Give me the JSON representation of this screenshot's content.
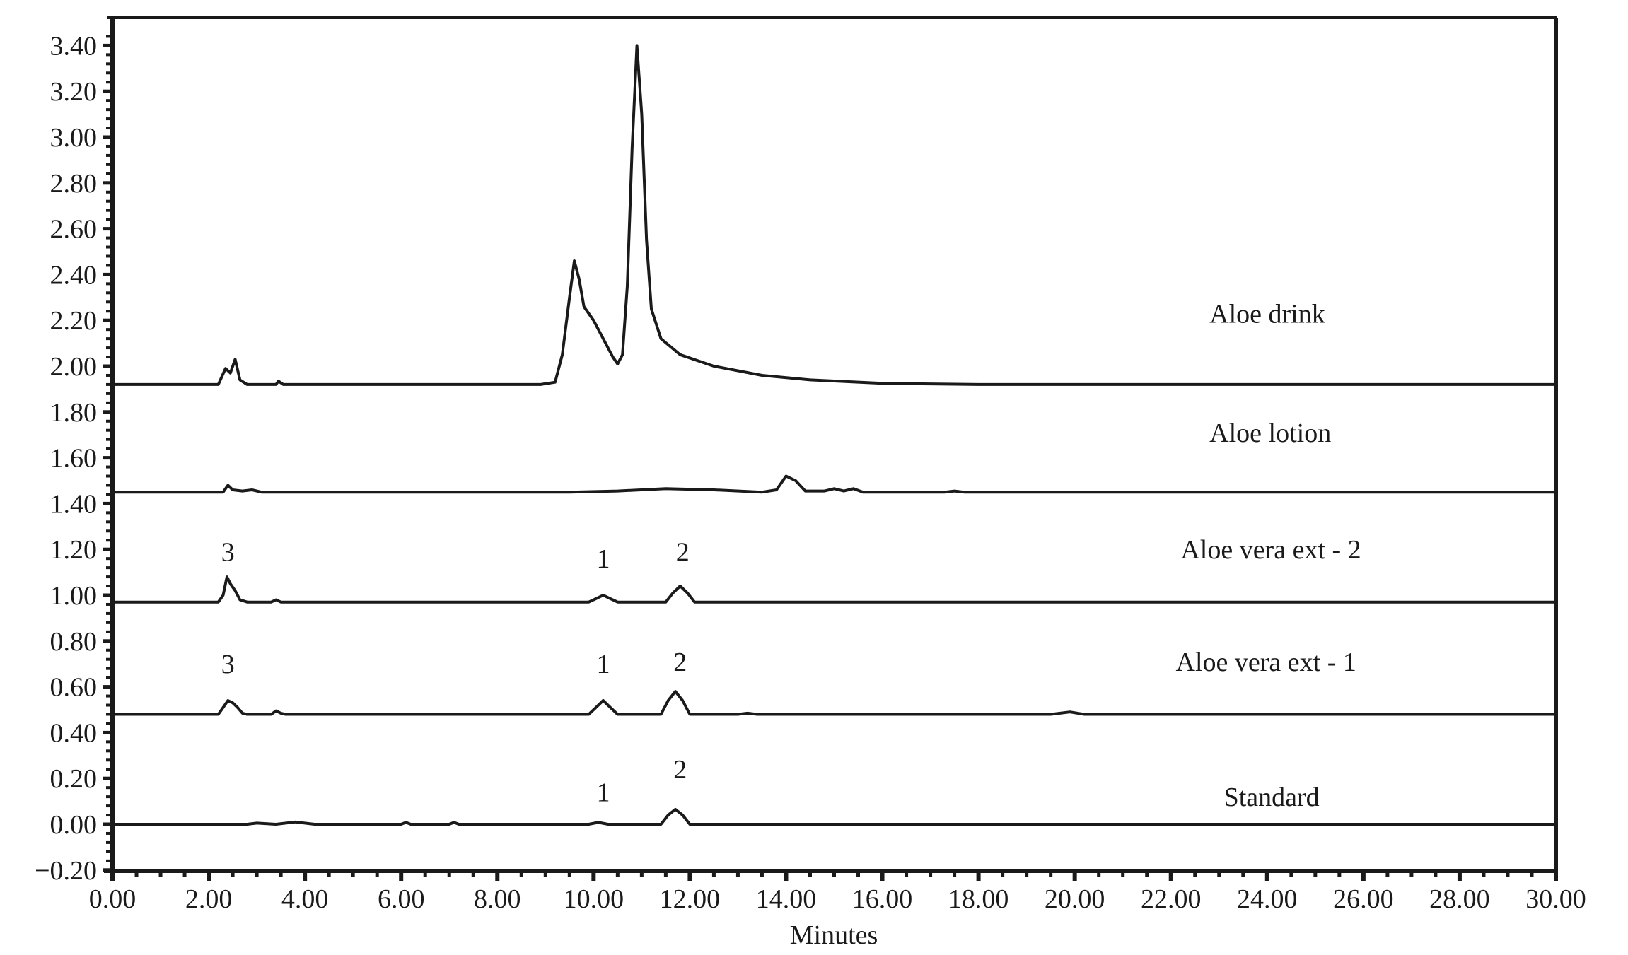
{
  "chart_data": {
    "type": "line",
    "title": "",
    "xlabel": "Minutes",
    "ylabel": "",
    "xlim": [
      0,
      30
    ],
    "ylim": [
      -0.2,
      3.45
    ],
    "grid": false,
    "legend_position": "inline-right",
    "x_ticks": [
      "0.00",
      "2.00",
      "4.00",
      "6.00",
      "8.00",
      "10.00",
      "12.00",
      "14.00",
      "16.00",
      "18.00",
      "20.00",
      "22.00",
      "24.00",
      "26.00",
      "28.00",
      "30.00"
    ],
    "y_ticks": [
      "-0.20",
      "0.00",
      "0.20",
      "0.40",
      "0.60",
      "0.80",
      "1.00",
      "1.20",
      "1.40",
      "1.60",
      "1.80",
      "2.00",
      "2.20",
      "2.40",
      "2.60",
      "2.80",
      "3.00",
      "3.20",
      "3.40"
    ],
    "series": [
      {
        "name": "Aloe drink",
        "baseline": 1.92,
        "label_pos": [
          22.8,
          2.19
        ],
        "points": [
          [
            0,
            1.92
          ],
          [
            2.2,
            1.92
          ],
          [
            2.35,
            1.99
          ],
          [
            2.45,
            1.97
          ],
          [
            2.55,
            2.03
          ],
          [
            2.65,
            1.94
          ],
          [
            2.8,
            1.92
          ],
          [
            3.4,
            1.92
          ],
          [
            3.45,
            1.935
          ],
          [
            3.55,
            1.92
          ],
          [
            8.9,
            1.92
          ],
          [
            9.2,
            1.93
          ],
          [
            9.35,
            2.05
          ],
          [
            9.5,
            2.3
          ],
          [
            9.6,
            2.46
          ],
          [
            9.7,
            2.38
          ],
          [
            9.8,
            2.26
          ],
          [
            10.0,
            2.2
          ],
          [
            10.2,
            2.12
          ],
          [
            10.4,
            2.04
          ],
          [
            10.5,
            2.01
          ],
          [
            10.6,
            2.05
          ],
          [
            10.7,
            2.35
          ],
          [
            10.8,
            2.95
          ],
          [
            10.9,
            3.4
          ],
          [
            11.0,
            3.1
          ],
          [
            11.1,
            2.55
          ],
          [
            11.2,
            2.25
          ],
          [
            11.4,
            2.12
          ],
          [
            11.8,
            2.05
          ],
          [
            12.5,
            2.0
          ],
          [
            13.5,
            1.96
          ],
          [
            14.5,
            1.94
          ],
          [
            16,
            1.925
          ],
          [
            18,
            1.92
          ],
          [
            30,
            1.92
          ]
        ],
        "peaks": []
      },
      {
        "name": "Aloe lotion",
        "baseline": 1.45,
        "label_pos": [
          22.8,
          1.67
        ],
        "points": [
          [
            0,
            1.45
          ],
          [
            2.3,
            1.45
          ],
          [
            2.4,
            1.48
          ],
          [
            2.5,
            1.46
          ],
          [
            2.7,
            1.455
          ],
          [
            2.9,
            1.46
          ],
          [
            3.1,
            1.45
          ],
          [
            9.5,
            1.45
          ],
          [
            10.5,
            1.455
          ],
          [
            11.5,
            1.465
          ],
          [
            12.5,
            1.46
          ],
          [
            13.5,
            1.45
          ],
          [
            13.8,
            1.46
          ],
          [
            14.0,
            1.52
          ],
          [
            14.2,
            1.5
          ],
          [
            14.4,
            1.455
          ],
          [
            14.8,
            1.455
          ],
          [
            15.0,
            1.465
          ],
          [
            15.2,
            1.455
          ],
          [
            15.4,
            1.465
          ],
          [
            15.6,
            1.45
          ],
          [
            17.3,
            1.45
          ],
          [
            17.5,
            1.455
          ],
          [
            17.7,
            1.45
          ],
          [
            30,
            1.45
          ]
        ],
        "peaks": []
      },
      {
        "name": "Aloe vera ext - 2",
        "baseline": 0.97,
        "label_pos": [
          22.2,
          1.16
        ],
        "points": [
          [
            0,
            0.97
          ],
          [
            2.2,
            0.97
          ],
          [
            2.3,
            1.0
          ],
          [
            2.38,
            1.08
          ],
          [
            2.45,
            1.05
          ],
          [
            2.55,
            1.02
          ],
          [
            2.65,
            0.98
          ],
          [
            2.8,
            0.97
          ],
          [
            3.3,
            0.97
          ],
          [
            3.4,
            0.98
          ],
          [
            3.5,
            0.97
          ],
          [
            9.9,
            0.97
          ],
          [
            10.05,
            0.985
          ],
          [
            10.2,
            1.0
          ],
          [
            10.35,
            0.985
          ],
          [
            10.5,
            0.97
          ],
          [
            11.5,
            0.97
          ],
          [
            11.65,
            1.01
          ],
          [
            11.8,
            1.04
          ],
          [
            11.95,
            1.01
          ],
          [
            12.1,
            0.97
          ],
          [
            30,
            0.97
          ]
        ],
        "peaks": [
          {
            "label": "3",
            "x": 2.4,
            "y": 1.15
          },
          {
            "label": "1",
            "x": 10.2,
            "y": 1.12
          },
          {
            "label": "2",
            "x": 11.85,
            "y": 1.15
          }
        ]
      },
      {
        "name": "Aloe vera ext - 1",
        "baseline": 0.48,
        "label_pos": [
          22.1,
          0.67
        ],
        "points": [
          [
            0,
            0.48
          ],
          [
            2.2,
            0.48
          ],
          [
            2.3,
            0.51
          ],
          [
            2.4,
            0.54
          ],
          [
            2.5,
            0.53
          ],
          [
            2.6,
            0.51
          ],
          [
            2.7,
            0.485
          ],
          [
            2.8,
            0.48
          ],
          [
            3.3,
            0.48
          ],
          [
            3.4,
            0.495
          ],
          [
            3.5,
            0.485
          ],
          [
            3.6,
            0.48
          ],
          [
            9.9,
            0.48
          ],
          [
            10.05,
            0.51
          ],
          [
            10.2,
            0.54
          ],
          [
            10.35,
            0.51
          ],
          [
            10.5,
            0.48
          ],
          [
            11.4,
            0.48
          ],
          [
            11.55,
            0.54
          ],
          [
            11.7,
            0.58
          ],
          [
            11.85,
            0.54
          ],
          [
            12.0,
            0.48
          ],
          [
            13.0,
            0.48
          ],
          [
            13.2,
            0.485
          ],
          [
            13.4,
            0.48
          ],
          [
            19.5,
            0.48
          ],
          [
            19.9,
            0.49
          ],
          [
            20.2,
            0.48
          ],
          [
            30,
            0.48
          ]
        ],
        "peaks": [
          {
            "label": "3",
            "x": 2.4,
            "y": 0.66
          },
          {
            "label": "1",
            "x": 10.2,
            "y": 0.66
          },
          {
            "label": "2",
            "x": 11.8,
            "y": 0.67
          }
        ]
      },
      {
        "name": "Standard",
        "baseline": 0.0,
        "label_pos": [
          23.1,
          0.08
        ],
        "points": [
          [
            0,
            0.0
          ],
          [
            2.8,
            0.0
          ],
          [
            3.0,
            0.005
          ],
          [
            3.4,
            0.0
          ],
          [
            3.8,
            0.01
          ],
          [
            4.2,
            0.0
          ],
          [
            6.0,
            0.0
          ],
          [
            6.1,
            0.008
          ],
          [
            6.2,
            0.0
          ],
          [
            7.0,
            0.0
          ],
          [
            7.1,
            0.008
          ],
          [
            7.2,
            0.0
          ],
          [
            9.9,
            0.0
          ],
          [
            10.1,
            0.008
          ],
          [
            10.3,
            0.0
          ],
          [
            11.4,
            0.0
          ],
          [
            11.55,
            0.04
          ],
          [
            11.7,
            0.065
          ],
          [
            11.85,
            0.04
          ],
          [
            12.0,
            0.0
          ],
          [
            30,
            0.0
          ]
        ],
        "peaks": [
          {
            "label": "1",
            "x": 10.2,
            "y": 0.1
          },
          {
            "label": "2",
            "x": 11.8,
            "y": 0.2
          }
        ]
      }
    ]
  },
  "axes": {
    "x_title": "Minutes"
  },
  "colors": {
    "line": "#1a1a1a",
    "background": "#ffffff"
  }
}
